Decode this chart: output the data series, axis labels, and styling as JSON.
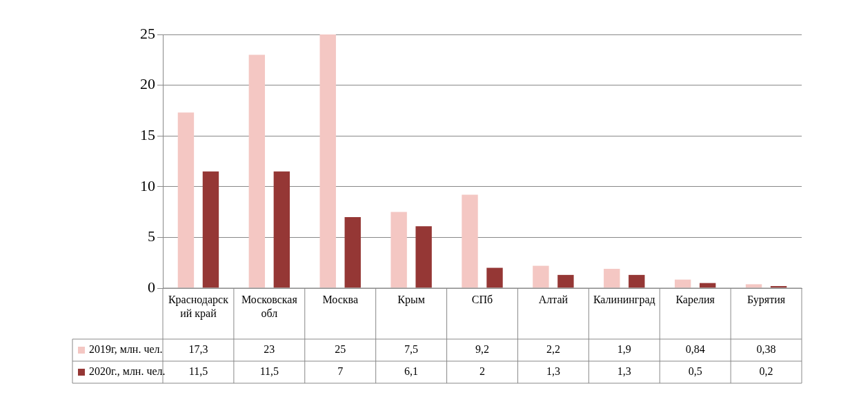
{
  "chart_data": {
    "type": "bar",
    "categories": [
      "Краснодарский край",
      "Московская обл",
      "Москва",
      "Крым",
      "СПб",
      "Алтай",
      "Калининград",
      "Карелия",
      "Бурятия"
    ],
    "series": [
      {
        "name": "2019г, млн. чел.",
        "color": "#f4c7c3",
        "values": [
          17.3,
          23,
          25,
          7.5,
          9.2,
          2.2,
          1.9,
          0.84,
          0.38
        ],
        "value_labels": [
          "17,3",
          "23",
          "25",
          "7,5",
          "9,2",
          "2,2",
          "1,9",
          "0,84",
          "0,38"
        ]
      },
      {
        "name": "2020г., млн. чел.",
        "color": "#953735",
        "values": [
          11.5,
          11.5,
          7,
          6.1,
          2,
          1.3,
          1.3,
          0.5,
          0.2
        ],
        "value_labels": [
          "11,5",
          "11,5",
          "7",
          "6,1",
          "2",
          "1,3",
          "1,3",
          "0,5",
          "0,2"
        ]
      }
    ],
    "ylim": [
      0,
      25
    ],
    "yticks": [
      0,
      5,
      10,
      15,
      20,
      25
    ],
    "grid": "y",
    "legend": "bottom left"
  }
}
